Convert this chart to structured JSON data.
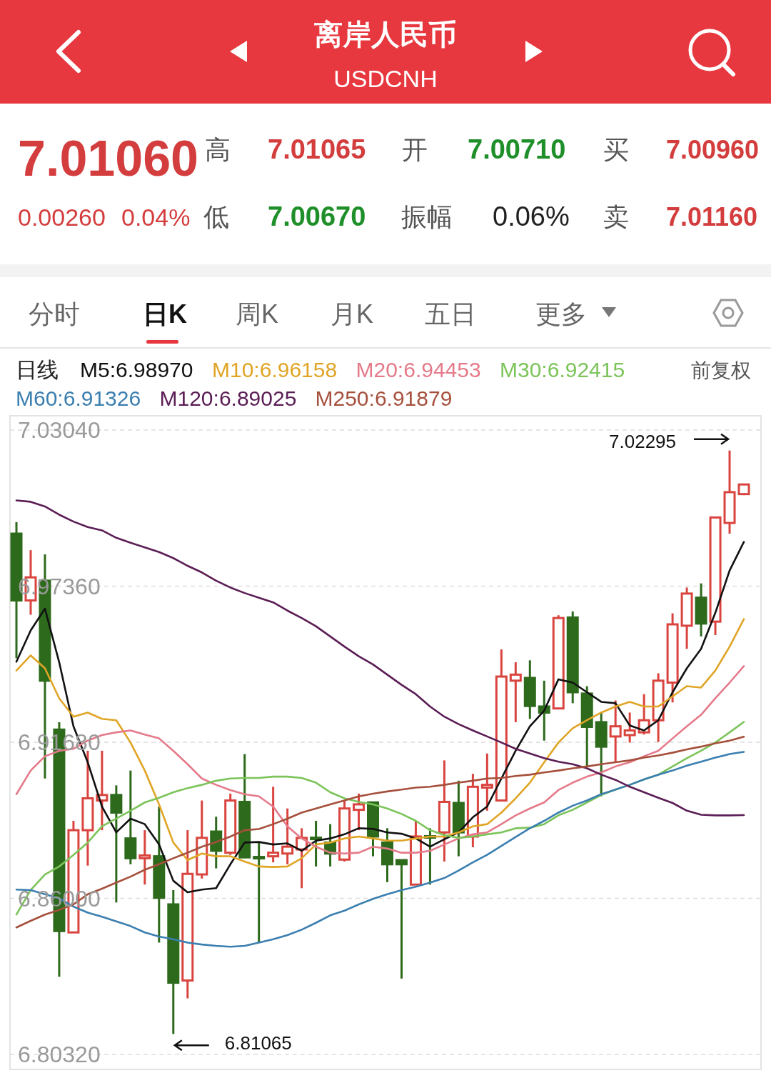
{
  "chart_data": {
    "type": "candlestick",
    "title": "离岸人民币",
    "subtitle": "USDCNH",
    "legend_title": "日线",
    "legend": "top",
    "grid": "y",
    "categories": [
      null,
      null,
      null,
      null,
      null,
      null,
      null,
      null,
      null,
      null,
      null,
      null,
      null,
      null,
      null,
      null,
      null,
      null,
      null,
      null,
      null,
      null,
      null,
      null,
      null,
      null,
      null,
      null,
      null,
      null,
      null,
      null,
      null,
      null,
      null,
      null,
      null,
      null,
      null,
      null,
      null,
      null,
      null,
      null,
      null,
      null,
      null,
      null,
      null,
      null,
      null,
      null
    ],
    "ylim": [
      6.8032,
      7.0304
    ],
    "yticks": [
      {
        "value": 7.0304,
        "label": "7.03040"
      },
      {
        "value": 6.9736,
        "label": "6.97360"
      },
      {
        "value": 6.9168,
        "label": "6.91680"
      },
      {
        "value": 6.86,
        "label": "6.86000"
      },
      {
        "value": 6.8032,
        "label": "6.80320"
      }
    ],
    "ohlc": [
      [
        6.9927,
        6.9969,
        6.9474,
        6.9684
      ],
      [
        6.9684,
        6.9867,
        6.9632,
        6.9768
      ],
      [
        6.9756,
        6.9852,
        6.9036,
        6.9392
      ],
      [
        6.9214,
        6.9241,
        6.8315,
        6.8481
      ],
      [
        6.8476,
        6.8882,
        6.8476,
        6.8848
      ],
      [
        6.8848,
        6.9137,
        6.8719,
        6.8964
      ],
      [
        6.8956,
        6.9137,
        6.8848,
        6.8976
      ],
      [
        6.8976,
        6.9011,
        6.8585,
        6.8912
      ],
      [
        6.8818,
        6.9065,
        6.8724,
        6.8746
      ],
      [
        6.8746,
        6.8848,
        6.865,
        6.8756
      ],
      [
        6.8753,
        6.8934,
        6.8439,
        6.8602
      ],
      [
        6.8578,
        6.863,
        6.81065,
        6.8293
      ],
      [
        6.8301,
        6.8848,
        6.8236,
        6.8689
      ],
      [
        6.8687,
        6.8956,
        6.8672,
        6.882
      ],
      [
        6.8843,
        6.8897,
        6.8709,
        6.8773
      ],
      [
        6.8766,
        6.8981,
        6.8758,
        6.8956
      ],
      [
        6.8951,
        6.9125,
        6.8749,
        6.8749
      ],
      [
        6.875,
        6.8803,
        6.8439,
        6.8746
      ],
      [
        6.8753,
        6.9006,
        6.8731,
        6.8766
      ],
      [
        6.8763,
        6.8927,
        6.8724,
        6.8788
      ],
      [
        6.8778,
        6.8855,
        6.8637,
        6.882
      ],
      [
        6.882,
        6.8882,
        6.8716,
        6.8816
      ],
      [
        6.8803,
        6.887,
        6.8716,
        6.8763
      ],
      [
        6.8741,
        6.8956,
        6.8734,
        6.8927
      ],
      [
        6.8922,
        6.8981,
        6.8848,
        6.8942
      ],
      [
        6.8949,
        6.8949,
        6.8753,
        6.8825
      ],
      [
        6.8803,
        6.8855,
        6.8659,
        6.8724
      ],
      [
        6.8739,
        6.8739,
        6.8308,
        6.8724
      ],
      [
        6.865,
        6.8882,
        6.865,
        6.8825
      ],
      [
        6.8825,
        6.8855,
        6.865,
        6.8822
      ],
      [
        6.884,
        6.9102,
        6.8734,
        6.8951
      ],
      [
        6.8947,
        6.9028,
        6.8753,
        6.884
      ],
      [
        6.8825,
        6.9053,
        6.8786,
        6.9006
      ],
      [
        6.9003,
        6.9127,
        6.8919,
        6.9013
      ],
      [
        6.8956,
        6.9506,
        6.8956,
        6.9407
      ],
      [
        6.9392,
        6.9459,
        6.9241,
        6.9414
      ],
      [
        6.9402,
        6.9466,
        6.9253,
        6.93
      ],
      [
        6.9298,
        6.9392,
        6.9174,
        6.9276
      ],
      [
        6.9291,
        6.963,
        6.9291,
        6.962
      ],
      [
        6.9622,
        6.9644,
        6.931,
        6.935
      ],
      [
        6.9345,
        6.9372,
        6.908,
        6.9224
      ],
      [
        6.9241,
        6.9276,
        6.8971,
        6.9152
      ],
      [
        6.9189,
        6.932,
        6.9095,
        6.9226
      ],
      [
        6.9194,
        6.9276,
        6.9167,
        6.9211
      ],
      [
        6.9204,
        6.9343,
        6.9196,
        6.9248
      ],
      [
        6.9248,
        6.9419,
        6.9169,
        6.9392
      ],
      [
        6.9385,
        6.9637,
        6.9313,
        6.9597
      ],
      [
        6.9592,
        6.9731,
        6.9508,
        6.9709
      ],
      [
        6.9694,
        6.9746,
        6.9553,
        6.96
      ],
      [
        6.9607,
        6.9986,
        6.9558,
        6.9986
      ],
      [
        6.9966,
        7.02295,
        6.9927,
        7.0078
      ],
      [
        7.0071,
        7.01065,
        7.0067,
        7.0106
      ]
    ],
    "colors": [
      "#2d6a1c",
      "#d9443f",
      "#2d6a1c",
      "#2d6a1c",
      "#d9443f",
      "#d9443f",
      "#d9443f",
      "#2d6a1c",
      "#2d6a1c",
      "#d9443f",
      "#2d6a1c",
      "#2d6a1c",
      "#d9443f",
      "#d9443f",
      "#2d6a1c",
      "#d9443f",
      "#2d6a1c",
      "#2d6a1c",
      "#d9443f",
      "#d9443f",
      "#d9443f",
      "#2d6a1c",
      "#2d6a1c",
      "#d9443f",
      "#d9443f",
      "#2d6a1c",
      "#2d6a1c",
      "#2d6a1c",
      "#d9443f",
      "#2d6a1c",
      "#d9443f",
      "#2d6a1c",
      "#d9443f",
      "#d9443f",
      "#d9443f",
      "#d9443f",
      "#2d6a1c",
      "#2d6a1c",
      "#d9443f",
      "#2d6a1c",
      "#2d6a1c",
      "#2d6a1c",
      "#d9443f",
      "#d9443f",
      "#d9443f",
      "#d9443f",
      "#d9443f",
      "#d9443f",
      "#2d6a1c",
      "#d9443f",
      "#d9443f",
      "#d9443f"
    ],
    "series": [
      {
        "name": "M5:6.98970",
        "type": "line",
        "color": "#111111",
        "values": [
          6.9461,
          6.9575,
          6.9654,
          6.9459,
          6.9226,
          6.9095,
          6.8934,
          6.884,
          6.889,
          6.887,
          6.8796,
          6.8664,
          6.8622,
          6.8632,
          6.8637,
          6.8724,
          6.8803,
          6.8805,
          6.8796,
          6.88,
          6.8773,
          6.881,
          6.8818,
          6.8833,
          6.8855,
          6.8853,
          6.884,
          6.8835,
          6.8818,
          6.8788,
          6.8815,
          6.884,
          6.8895,
          6.8934,
          6.9036,
          6.9137,
          6.9226,
          6.9283,
          6.9397,
          6.9385,
          6.935,
          6.9315,
          6.931,
          6.9229,
          6.9211,
          6.9248,
          6.935,
          6.9437,
          6.9508,
          6.9639,
          6.9793,
          6.9897
        ]
      },
      {
        "name": "M10:6.96158",
        "type": "line",
        "color": "#e0a526",
        "values": [
          6.9429,
          6.9484,
          6.9437,
          6.9328,
          6.9261,
          6.9276,
          6.9253,
          6.9248,
          6.9167,
          6.9065,
          6.8942,
          6.8803,
          6.8739,
          6.8763,
          6.8753,
          6.8753,
          6.8734,
          6.8716,
          6.8714,
          6.8716,
          6.8746,
          6.8796,
          6.8803,
          6.8818,
          6.8825,
          6.8818,
          6.881,
          6.881,
          6.8818,
          6.8825,
          6.8825,
          6.884,
          6.8862,
          6.887,
          6.8912,
          6.8964,
          6.9021,
          6.9095,
          6.9167,
          6.9219,
          6.9248,
          6.9276,
          6.9298,
          6.9315,
          6.9298,
          6.9298,
          6.9335,
          6.9372,
          6.9367,
          6.9429,
          6.9516,
          6.9616
        ]
      },
      {
        "name": "M20:6.94453",
        "type": "line",
        "color": "#e57a8a",
        "values": [
          6.8979,
          6.9065,
          6.9117,
          6.9137,
          6.9144,
          6.9174,
          6.9194,
          6.9204,
          6.9211,
          6.9196,
          6.9182,
          6.9137,
          6.9088,
          6.9036,
          6.9013,
          6.8994,
          6.8979,
          6.8971,
          6.8934,
          6.8862,
          6.8818,
          6.8788,
          6.8766,
          6.8763,
          6.8766,
          6.8788,
          6.8781,
          6.8766,
          6.8766,
          6.8773,
          6.8796,
          6.8818,
          6.8833,
          6.884,
          6.887,
          6.8902,
          6.8927,
          6.8949,
          6.8994,
          6.9021,
          6.9043,
          6.9058,
          6.908,
          6.9095,
          6.9117,
          6.9137,
          6.9182,
          6.9226,
          6.9268,
          6.9328,
          6.9385,
          6.9445
        ]
      },
      {
        "name": "M30:6.92415",
        "type": "line",
        "color": "#7cc45a",
        "values": [
          6.8541,
          6.863,
          6.8687,
          6.8716,
          6.8758,
          6.8803,
          6.8862,
          6.889,
          6.8919,
          6.8949,
          6.8966,
          6.8986,
          6.9001,
          6.9013,
          6.9028,
          6.9036,
          6.9038,
          6.9038,
          6.9043,
          6.9043,
          6.9038,
          6.9021,
          6.8986,
          6.8964,
          6.8951,
          6.8942,
          6.8927,
          6.8907,
          6.8882,
          6.8848,
          6.883,
          6.882,
          6.8825,
          6.8833,
          6.884,
          6.8855,
          6.8857,
          6.887,
          6.8902,
          6.8922,
          6.8949,
          6.8976,
          6.8996,
          6.9013,
          6.9033,
          6.905,
          6.908,
          6.911,
          6.9137,
          6.9167,
          6.9204,
          6.9242
        ]
      },
      {
        "name": "M60:6.91326",
        "type": "line",
        "color": "#3b7fb0",
        "values": [
          6.8632,
          6.863,
          6.8615,
          6.86,
          6.857,
          6.8548,
          6.8533,
          6.8516,
          6.8499,
          6.8476,
          6.8461,
          6.8451,
          6.8439,
          6.8432,
          6.8427,
          6.8424,
          6.8427,
          6.8439,
          6.8451,
          6.8466,
          6.8486,
          6.8511,
          6.8538,
          6.8555,
          6.8578,
          6.8598,
          6.8615,
          6.863,
          6.8642,
          6.8657,
          6.8674,
          6.8701,
          6.8731,
          6.8758,
          6.8791,
          6.8823,
          6.8855,
          6.8882,
          6.8912,
          6.8937,
          6.8956,
          6.8979,
          6.8996,
          6.9013,
          6.9033,
          6.905,
          6.9065,
          6.9083,
          6.9097,
          6.9112,
          6.9125,
          6.9133
        ]
      },
      {
        "name": "M120:6.89025",
        "type": "line",
        "color": "#5b1d55",
        "values": [
          7.0048,
          7.0043,
          7.0026,
          6.9996,
          6.9971,
          6.9951,
          6.9939,
          6.9912,
          6.9894,
          6.9877,
          6.986,
          6.9838,
          6.981,
          6.9786,
          6.9756,
          6.9731,
          6.9711,
          6.9694,
          6.9677,
          6.9647,
          6.962,
          6.959,
          6.9553,
          6.9516,
          6.9481,
          6.9451,
          6.9414,
          6.9377,
          6.9343,
          6.9298,
          6.9261,
          6.9234,
          6.9211,
          6.9189,
          6.9167,
          6.9144,
          6.9127,
          6.911,
          6.9097,
          6.9088,
          6.9073,
          6.905,
          6.9031,
          6.9006,
          6.8986,
          6.8966,
          6.8947,
          6.8919,
          6.8904,
          6.8902,
          6.8902,
          6.8903
        ]
      },
      {
        "name": "M250:6.91879",
        "type": "line",
        "color": "#a5503c",
        "values": [
          6.8494,
          6.8518,
          6.8541,
          6.8558,
          6.8578,
          6.8615,
          6.8635,
          6.8657,
          6.8679,
          6.8704,
          6.8724,
          6.8746,
          6.8766,
          6.8788,
          6.8805,
          6.8825,
          6.8848,
          6.8852,
          6.887,
          6.889,
          6.8912,
          6.8927,
          6.8942,
          6.8956,
          6.8971,
          6.8981,
          6.8989,
          6.8996,
          6.9003,
          6.9006,
          6.9013,
          6.9021,
          6.9028,
          6.9036,
          6.9038,
          6.9045,
          6.905,
          6.9058,
          6.9065,
          6.9073,
          6.908,
          6.9088,
          6.9095,
          6.9102,
          6.9112,
          6.912,
          6.913,
          6.9142,
          6.9152,
          6.9164,
          6.9174,
          6.9188
        ]
      }
    ],
    "annotations": [
      "7.01060",
      "高",
      "7.01065",
      "开",
      "7.00710",
      "买",
      "7.00960",
      "0.00260",
      "0.04%",
      "低",
      "7.00670",
      "振幅",
      "0.06%",
      "卖",
      "7.01160",
      "分时",
      "日K",
      "周K",
      "月K",
      "五日",
      "更多",
      "前复权",
      "7.02295",
      "6.81065"
    ]
  }
}
